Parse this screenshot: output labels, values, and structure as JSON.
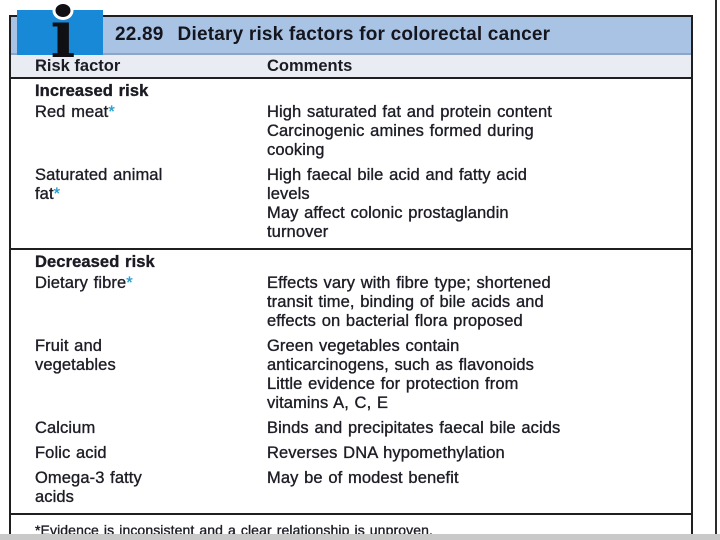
{
  "page": {
    "background": "#ffffff",
    "edge_line_color": "#2b2b2b",
    "bottom_band_color": "#c9c9c9"
  },
  "tablebox": {
    "number": "22.89",
    "title": "Dietary risk factors for colorectal cancer",
    "columns": {
      "factor": "Risk factor",
      "comments": "Comments"
    },
    "sections": [
      {
        "heading": "Increased risk",
        "rows": [
          {
            "factor": "Red meat",
            "marker": "*",
            "comment": "High saturated fat and protein content\nCarcinogenic amines formed during\ncooking"
          },
          {
            "factor": "Saturated animal\nfat",
            "marker": "*",
            "comment": "High faecal bile acid and fatty acid\nlevels\nMay affect colonic prostaglandin\nturnover"
          }
        ]
      },
      {
        "heading": "Decreased risk",
        "rows": [
          {
            "factor": "Dietary fibre",
            "marker": "*",
            "comment": "Effects vary with fibre type; shortened\ntransit time, binding of bile acids and\neffects on bacterial flora proposed"
          },
          {
            "factor": "Fruit and\nvegetables",
            "marker": "",
            "comment": "Green vegetables contain\nanticarcinogens, such as flavonoids\nLittle evidence for protection from\nvitamins A, C, E"
          },
          {
            "factor": "Calcium",
            "marker": "",
            "comment": "Binds and precipitates faecal bile acids"
          },
          {
            "factor": "Folic acid",
            "marker": "",
            "comment": "Reverses DNA hypomethylation"
          },
          {
            "factor": "Omega-3 fatty\nacids",
            "marker": "",
            "comment": "May be of modest benefit"
          }
        ]
      }
    ],
    "footnote": "*Evidence is inconsistent and a clear relationship is unproven.",
    "icon": {
      "glyph": "ı"
    },
    "colors": {
      "title_bar": "#a9c3e4",
      "title_bar_edge": "#8ca6c8",
      "icon_square": "#1789d6",
      "header_row": "#e9ecf3",
      "text": "#1d1d26",
      "asterisk": "#2a9fd0",
      "border": "#1f1f1f"
    }
  }
}
